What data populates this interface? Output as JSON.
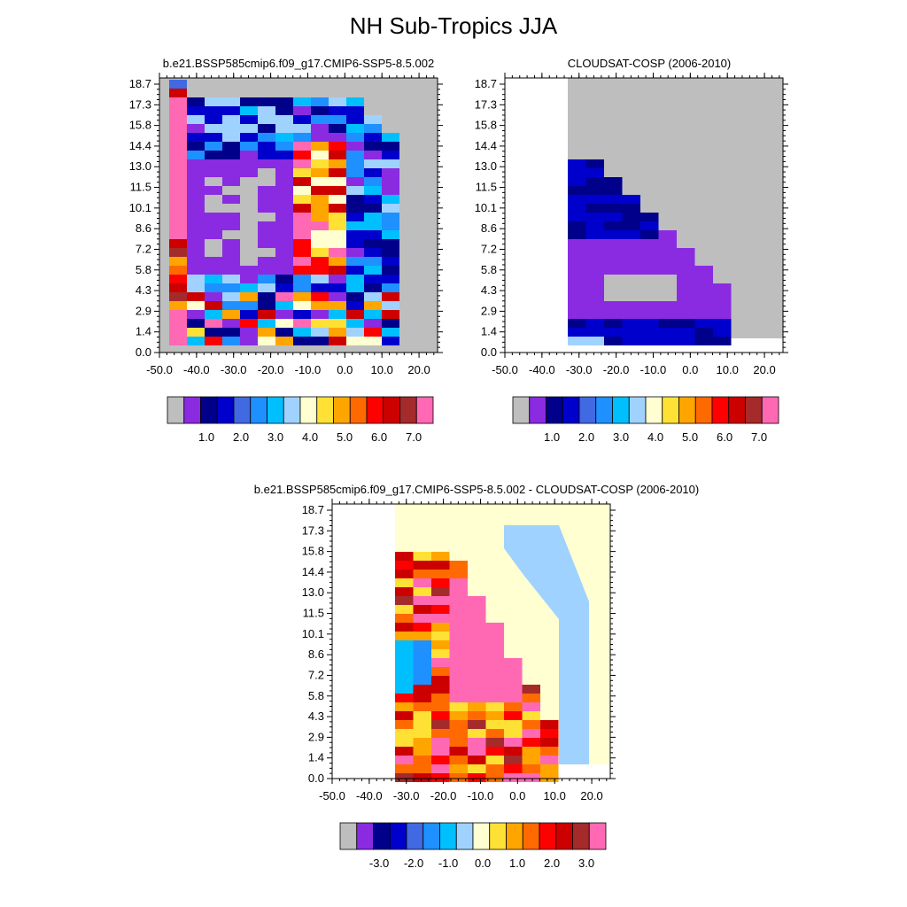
{
  "title": "NH Sub-Tropics JJA",
  "palette": {
    "grey": "#bebebe",
    "colors": [
      "#bebebe",
      "#8a2be2",
      "#00008b",
      "#0000cd",
      "#4169e1",
      "#1e90ff",
      "#00bfff",
      "#a0d2ff",
      "#ffffd1",
      "#ffe135",
      "#ffa500",
      "#ff6a00",
      "#ff0000",
      "#cd0000",
      "#a52a2a",
      "#ff69b4"
    ]
  },
  "chart_data": [
    {
      "id": "model",
      "type": "heatmap",
      "title": "b.e21.BSSP585cmip6.f09_g17.CMIP6-SSP5-8.5.002",
      "x_ticks": [
        "-50.0",
        "-40.0",
        "-30.0",
        "-20.0",
        "-10.0",
        "0.0",
        "10.0",
        "20.0"
      ],
      "y_ticks": [
        "18.7",
        "17.3",
        "15.8",
        "14.4",
        "13.0",
        "11.5",
        "10.1",
        "8.6",
        "7.2",
        "5.8",
        "4.3",
        "2.9",
        "1.4",
        "0.0"
      ],
      "colorbar_labels": [
        "1.0",
        "2.0",
        "3.0",
        "4.0",
        "5.0",
        "6.0",
        "7.0"
      ],
      "grid_rows": [
        "EFFFFFFFFFFFFFFFFF",
        "GGGGGGGGGGGGGGGGGG",
        "P0000000000000000",
        "P0000000000000000",
        "P0000000000000000",
        "P2110000000000000",
        "P3221100000000000",
        "P6543211000000000",
        "P6788553200000000",
        "P7788776620000000",
        "P6688667761000000",
        "P3456669CB7100000",
        "P322556ACB8300000",
        "P2221559DB8632000",
        "P2111149DC8763000",
        "P2111158DC8764000",
        "P2111137EC8763000",
        "P1111138ED7762000",
        "F1000014AE8762000",
        "E1000014AE7761000",
        "C1000013BE7761000",
        "B1222124AD6761000",
        "A1222132AC5771000",
        "D2222221AB7771000",
        "F2223313BA6662000",
        "C3345666A95520000",
        "P3346668A96520000",
        "P2321212A23000000",
        "C8CD9F7A5B3000000",
        "B2A2FF89933000000"
      ],
      "grid_rows_note": "",
      "xlim": [
        -50,
        25
      ],
      "ylim": [
        0.0,
        18.7
      ]
    },
    {
      "id": "obs",
      "type": "heatmap",
      "title": "CLOUDSAT-COSP (2006-2010)",
      "x_ticks": [
        "-50.0",
        "-40.0",
        "-30.0",
        "-20.0",
        "-10.0",
        "0.0",
        "10.0",
        "20.0"
      ],
      "y_ticks": [
        "18.7",
        "17.3",
        "15.8",
        "14.4",
        "13.0",
        "11.5",
        "10.1",
        "8.6",
        "7.2",
        "5.8",
        "4.3",
        "2.9",
        "1.4",
        "0.0"
      ],
      "colorbar_labels": [
        "1.0",
        "2.0",
        "3.0",
        "4.0",
        "5.0",
        "6.0",
        "7.0"
      ],
      "xlim": [
        -50,
        25
      ],
      "ylim": [
        0.0,
        18.7
      ]
    },
    {
      "id": "diff",
      "type": "heatmap",
      "title": "b.e21.BSSP585cmip6.f09_g17.CMIP6-SSP5-8.5.002 - CLOUDSAT-COSP (2006-2010)",
      "x_ticks": [
        "-50.0",
        "-40.0",
        "-30.0",
        "-20.0",
        "-10.0",
        "0.0",
        "10.0",
        "20.0"
      ],
      "y_ticks": [
        "18.7",
        "17.3",
        "15.8",
        "14.4",
        "13.0",
        "11.5",
        "10.1",
        "8.6",
        "7.2",
        "5.8",
        "4.3",
        "2.9",
        "1.4",
        "0.0"
      ],
      "colorbar_labels": [
        "-3.0",
        "-2.0",
        "-1.0",
        "0.0",
        "1.0",
        "2.0",
        "3.0"
      ],
      "xlim": [
        -50,
        25
      ],
      "ylim": [
        0.0,
        18.7
      ]
    }
  ]
}
